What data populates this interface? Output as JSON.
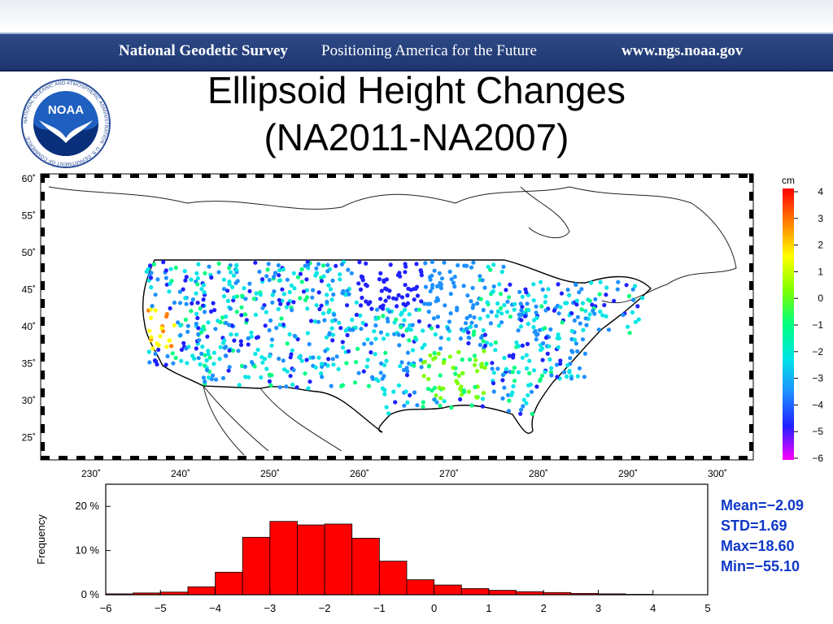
{
  "header": {
    "org": "National Geodetic Survey",
    "tagline": "Positioning America for the Future",
    "url": "www.ngs.noaa.gov"
  },
  "logo": {
    "text": "NOAA",
    "ring_text": "NATIONAL OCEANIC AND ATMOSPHERIC ADMINISTRATION · U.S. DEPARTMENT OF COMMERCE"
  },
  "slide": {
    "title_line1": "Ellipsoid Height Changes",
    "title_line2": "(NA2011-NA2007)"
  },
  "map": {
    "lat_ticks": [
      "60˚",
      "55˚",
      "50˚",
      "45˚",
      "40˚",
      "35˚",
      "30˚",
      "25˚"
    ],
    "lon_ticks": [
      "230˚",
      "240˚",
      "250˚",
      "260˚",
      "270˚",
      "280˚",
      "290˚",
      "300˚"
    ]
  },
  "colorbar": {
    "unit": "cm",
    "ticks": [
      "4",
      "3",
      "2",
      "1",
      "0",
      "−1",
      "−2",
      "−3",
      "−4",
      "−5",
      "−6"
    ],
    "colors": [
      "#ff00ff",
      "#2020ff",
      "#1e90ff",
      "#00e5e5",
      "#00ff7f",
      "#7fff00",
      "#ffff00",
      "#ff8000",
      "#ff0000"
    ]
  },
  "stats": {
    "mean": "Mean=−2.09",
    "std": "STD=1.69",
    "max": "Max=18.60",
    "min": "Min=−55.10"
  },
  "chart_data": {
    "type": "bar",
    "ylabel": "Frequency",
    "xlabel": "",
    "xlim": [
      -6,
      5
    ],
    "ylim": [
      0,
      25
    ],
    "y_ticks": [
      "0 %",
      "10 %",
      "20 %"
    ],
    "x_ticks": [
      "−6",
      "−5",
      "−4",
      "−3",
      "−2",
      "−1",
      "0",
      "1",
      "2",
      "3",
      "4",
      "5"
    ],
    "bar_color": "#ff0000",
    "bin_width": 0.5,
    "bins": [
      -6,
      -5.5,
      -5,
      -4.5,
      -4,
      -3.5,
      -3,
      -2.5,
      -2,
      -1.5,
      -1,
      -0.5,
      0,
      0.5,
      1,
      1.5,
      2,
      2.5,
      3,
      3.5
    ],
    "values": [
      0.2,
      0.4,
      0.6,
      1.8,
      5.1,
      13.0,
      16.6,
      15.8,
      16.0,
      12.8,
      7.6,
      3.4,
      2.2,
      1.4,
      1.0,
      0.7,
      0.5,
      0.3,
      0.2,
      0.1
    ]
  }
}
